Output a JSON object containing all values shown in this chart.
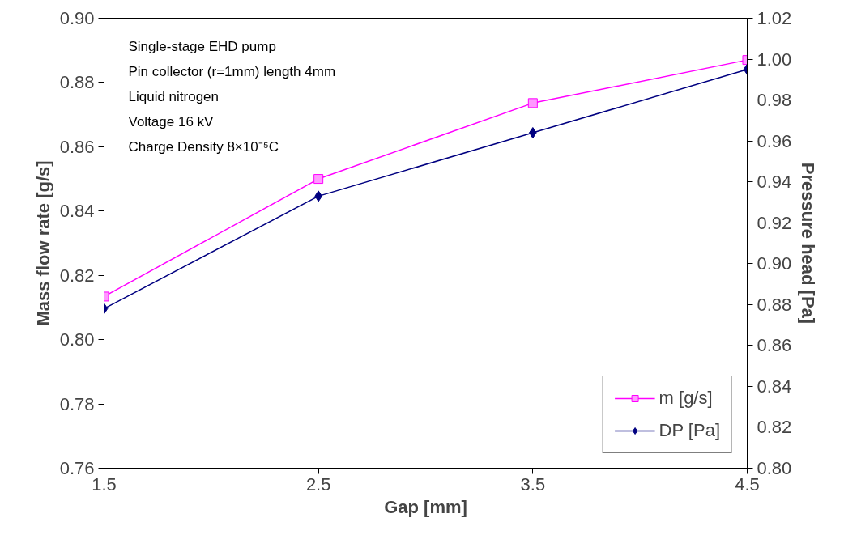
{
  "chart_data": {
    "type": "line",
    "xlabel": "Gap [mm]",
    "ylabel": "Mass flow rate [g/s]",
    "y2label": "Pressure head [Pa]",
    "x": [
      1.5,
      2.5,
      3.5,
      4.5
    ],
    "xlim": [
      1.5,
      4.5
    ],
    "xticks": [
      1.5,
      2.5,
      3.5,
      4.5
    ],
    "ylim": [
      0.76,
      0.9
    ],
    "yticks": [
      {
        "value": 0.76,
        "label": "0.76"
      },
      {
        "value": 0.78,
        "label": "0.78"
      },
      {
        "value": 0.8,
        "label": "0.80"
      },
      {
        "value": 0.82,
        "label": "0.82"
      },
      {
        "value": 0.84,
        "label": "0.84"
      },
      {
        "value": 0.86,
        "label": "0.86"
      },
      {
        "value": 0.88,
        "label": "0.88"
      },
      {
        "value": 0.9,
        "label": "0.90"
      }
    ],
    "y2lim": [
      0.8,
      1.02
    ],
    "y2ticks": [
      {
        "value": 0.8,
        "label": "0.80"
      },
      {
        "value": 0.82,
        "label": "0.82"
      },
      {
        "value": 0.84,
        "label": "0.84"
      },
      {
        "value": 0.86,
        "label": "0.86"
      },
      {
        "value": 0.88,
        "label": "0.88"
      },
      {
        "value": 0.9,
        "label": "0.90"
      },
      {
        "value": 0.92,
        "label": "0.92"
      },
      {
        "value": 0.94,
        "label": "0.94"
      },
      {
        "value": 0.96,
        "label": "0.96"
      },
      {
        "value": 0.98,
        "label": "0.98"
      },
      {
        "value": 1.0,
        "label": "1.00"
      },
      {
        "value": 1.02,
        "label": "1.02"
      }
    ],
    "series": [
      {
        "name": "m [g/s]",
        "color": "#ff00ff",
        "marker": "square",
        "values": [
          0.8134,
          0.85,
          0.8736,
          0.887
        ]
      },
      {
        "name": "DP [Pa]",
        "color": "#000080",
        "marker": "diamond",
        "axis": "y2",
        "values": [
          0.878,
          0.933,
          0.964,
          0.995
        ]
      }
    ],
    "annotations": [
      "Single-stage EHD pump",
      "Pin collector (r=1mm) length 4mm",
      "Liquid nitrogen",
      "Voltage 16 kV",
      "Charge Density 8×10⁻⁵C"
    ],
    "grid": false,
    "legend": "bottom right"
  }
}
